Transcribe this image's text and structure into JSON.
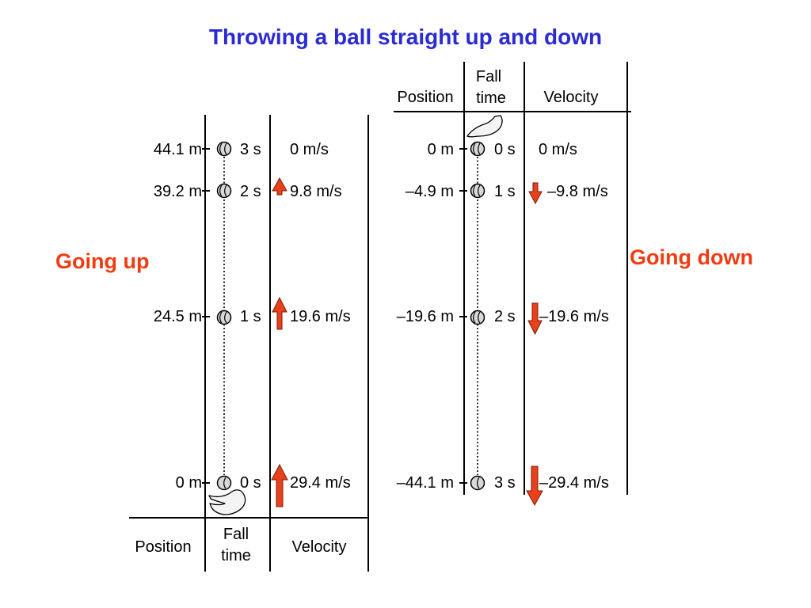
{
  "title": "Throwing a ball straight up and down",
  "up": {
    "direction_label": "Going up",
    "headers": {
      "position": "Position",
      "fall_time_1": "Fall",
      "fall_time_2": "time",
      "velocity": "Velocity"
    },
    "rows": [
      {
        "position": "44.1 m",
        "time": "3 s",
        "velocity": "0 m/s"
      },
      {
        "position": "39.2 m",
        "time": "2 s",
        "velocity": "9.8 m/s"
      },
      {
        "position": "24.5 m",
        "time": "1 s",
        "velocity": "19.6 m/s"
      },
      {
        "position": "0 m",
        "time": "0 s",
        "velocity": "29.4 m/s"
      }
    ]
  },
  "down": {
    "direction_label": "Going down",
    "headers": {
      "position": "Position",
      "fall_time_1": "Fall",
      "fall_time_2": "time",
      "velocity": "Velocity"
    },
    "rows": [
      {
        "position": "0 m",
        "time": "0 s",
        "velocity": "0 m/s"
      },
      {
        "position": "–4.9 m",
        "time": "1 s",
        "velocity": "–9.8 m/s"
      },
      {
        "position": "–19.6 m",
        "time": "2 s",
        "velocity": "–19.6 m/s"
      },
      {
        "position": "–44.1 m",
        "time": "3 s",
        "velocity": "–29.4 m/s"
      }
    ]
  },
  "colors": {
    "title": "#2b2bd1",
    "direction": "#f03c12",
    "arrow": "#e8411b"
  },
  "icons": [
    "baseball-icon",
    "hand-icon",
    "velocity-arrow-icon"
  ]
}
